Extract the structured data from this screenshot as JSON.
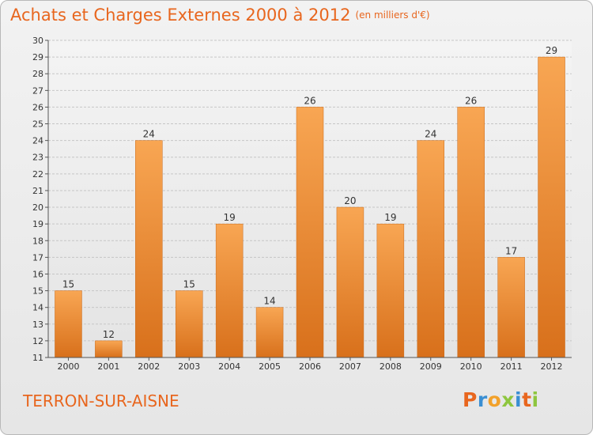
{
  "title": "Achats et Charges Externes 2000 à 2012",
  "subtitle": "(en milliers d'€)",
  "commune": "TERRON-SUR-AISNE",
  "logo": {
    "letters": [
      "P",
      "r",
      "o",
      "x",
      "i",
      "t",
      "i"
    ],
    "colors": [
      "#e8661e",
      "#3a8fd3",
      "#f2a12a",
      "#8ec63f",
      "#3a8fd3",
      "#e8661e",
      "#8ec63f"
    ]
  },
  "colors": {
    "bar_light": "#f6a24e",
    "bar_dark": "#d9711a",
    "accent": "#e8661e"
  },
  "chart_data": {
    "type": "bar",
    "categories": [
      "2000",
      "2001",
      "2002",
      "2003",
      "2004",
      "2005",
      "2006",
      "2007",
      "2008",
      "2009",
      "2010",
      "2011",
      "2012"
    ],
    "values": [
      15,
      12,
      24,
      15,
      19,
      14,
      26,
      20,
      19,
      24,
      26,
      17,
      29
    ],
    "title": "Achats et Charges Externes 2000 à 2012",
    "subtitle": "(en milliers d'€)",
    "xlabel": "",
    "ylabel": "",
    "ylim": [
      11,
      30
    ],
    "yticks": [
      11,
      12,
      13,
      14,
      15,
      16,
      17,
      18,
      19,
      20,
      21,
      22,
      23,
      24,
      25,
      26,
      27,
      28,
      29,
      30
    ],
    "grid": true,
    "data_labels": true
  }
}
